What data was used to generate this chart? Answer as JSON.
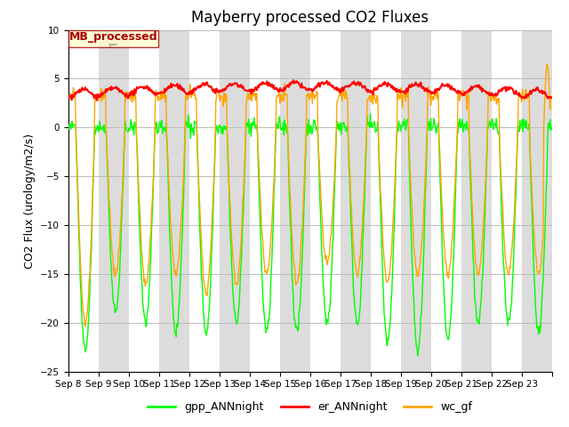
{
  "title": "Mayberry processed CO2 Fluxes",
  "ylabel": "CO2 Flux (urology/m2/s)",
  "ylim": [
    -25,
    10
  ],
  "yticks": [
    -25,
    -20,
    -15,
    -10,
    -5,
    0,
    5,
    10
  ],
  "x_tick_labels": [
    "Sep 8",
    "Sep 9",
    "Sep 10",
    "Sep 11",
    "Sep 12",
    "Sep 13",
    "Sep 14",
    "Sep 15",
    "Sep 16",
    "Sep 17",
    "Sep 18",
    "Sep 19",
    "Sep 20",
    "Sep 21",
    "Sep 22",
    "Sep 23"
  ],
  "line_colors": {
    "gpp": "#00FF00",
    "er": "#FF0000",
    "wc": "#FFA500"
  },
  "line_widths": {
    "gpp": 1.0,
    "er": 1.5,
    "wc": 1.0
  },
  "legend_box_label": "MB_processed",
  "legend_box_facecolor": "#FFFFCC",
  "legend_box_edgecolor": "#AA0000",
  "legend_box_textcolor": "#AA0000",
  "legend_labels": [
    "gpp_ANNnight",
    "er_ANNnight",
    "wc_gf"
  ],
  "bg_band_color": "#DCDCDC",
  "fig_facecolor": "#FFFFFF",
  "ax_facecolor": "#FFFFFF",
  "grid_color": "#BBBBBB",
  "points_per_day": 48,
  "num_days": 16,
  "title_fontsize": 12,
  "axis_label_fontsize": 9,
  "tick_fontsize": 7.5,
  "legend_fontsize": 9
}
